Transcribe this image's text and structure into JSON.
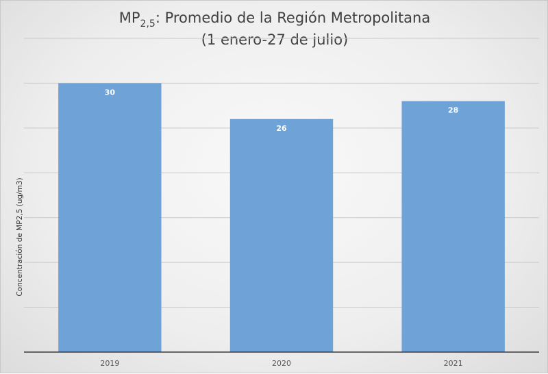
{
  "chart_data": {
    "type": "bar",
    "title_line1_main": "MP",
    "title_line1_subscript": "2,5",
    "title_line1_rest": ": Promedio de la Región Metropolitana",
    "title_line2": "(1 enero-27 de julio)",
    "xlabel": "",
    "ylabel": "Concentración de MP2,5 (ug/m3)",
    "categories": [
      "2019",
      "2020",
      "2021"
    ],
    "values": [
      30,
      26,
      28
    ],
    "data_labels": [
      "30",
      "26",
      "28"
    ],
    "ylim": [
      0,
      35
    ],
    "ytick_step": 5,
    "grid": true,
    "legend": "none"
  },
  "colors": {
    "bar": "#6fa3d8",
    "data_label": "#ffffff",
    "gridline": "#c9c9c9",
    "axis": "#3a3a3a"
  }
}
